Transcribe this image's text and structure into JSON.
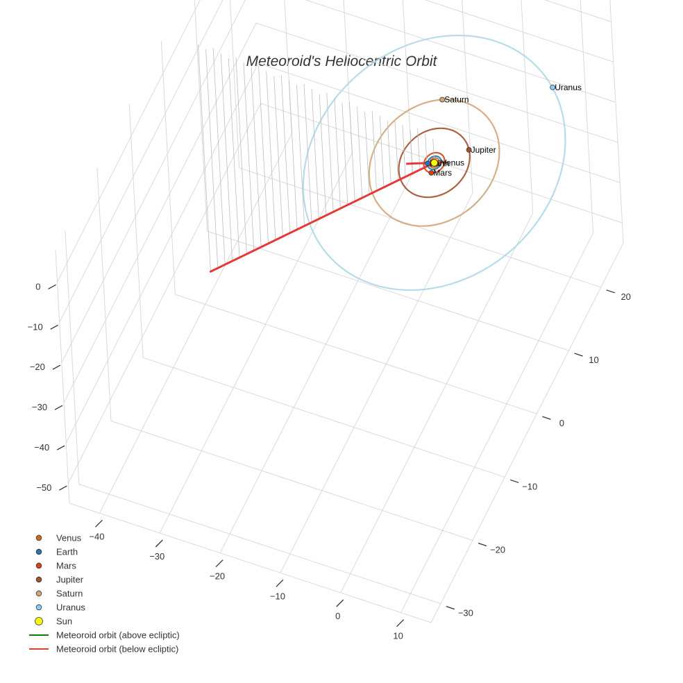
{
  "chart_data": {
    "type": "scatter3d",
    "title": "Meteoroid's Heliocentric Orbit",
    "axes": {
      "x": {
        "ticks": [
          -40,
          -30,
          -20,
          -10,
          0,
          10
        ],
        "grid": true
      },
      "y": {
        "ticks": [
          -30,
          -20,
          -10,
          0,
          10,
          20
        ],
        "grid": true
      },
      "z": {
        "ticks": [
          0,
          -10,
          -20,
          -30,
          -40,
          -50
        ],
        "grid": true
      }
    },
    "sun": {
      "name": "Sun",
      "x": 0,
      "y": 0,
      "z": 0,
      "color": "#ffff00"
    },
    "planets": [
      {
        "name": "Venus",
        "orbit_radius_au": 0.72,
        "x": 0.7,
        "y": 0.2,
        "z": 0,
        "color": "#d2691e"
      },
      {
        "name": "Earth",
        "orbit_radius_au": 1.0,
        "x": -0.9,
        "y": -0.4,
        "z": 0,
        "color": "#1f77b4"
      },
      {
        "name": "Mars",
        "orbit_radius_au": 1.52,
        "x": 0.3,
        "y": -1.5,
        "z": 0,
        "color": "#d84315"
      },
      {
        "name": "Jupiter",
        "orbit_radius_au": 5.2,
        "x": 4.0,
        "y": 3.3,
        "z": 0,
        "color": "#a0522d"
      },
      {
        "name": "Saturn",
        "orbit_radius_au": 9.54,
        "x": -3.4,
        "y": 8.9,
        "z": 0,
        "color": "#d2a679"
      },
      {
        "name": "Uranus",
        "orbit_radius_au": 19.2,
        "x": 11.4,
        "y": 15.5,
        "z": 0,
        "color": "#87cefa"
      }
    ],
    "orbits": [
      {
        "planet": "Venus",
        "radius": 0.72,
        "color": "#d2691e"
      },
      {
        "planet": "Earth",
        "radius": 1.0,
        "color": "#1f77b4"
      },
      {
        "planet": "Mars",
        "radius": 1.52,
        "color": "#d84315"
      },
      {
        "planet": "Jupiter",
        "radius": 5.2,
        "color": "#a0522d"
      },
      {
        "planet": "Saturn",
        "radius": 9.54,
        "color": "#d2a679"
      },
      {
        "planet": "Uranus",
        "radius": 19.2,
        "color": "#add8e6"
      }
    ],
    "meteoroid": {
      "above_ecliptic": {
        "name": "Meteoroid orbit (above ecliptic)",
        "color": "#008000",
        "points": []
      },
      "below_ecliptic": {
        "name": "Meteoroid orbit (below ecliptic)",
        "color": "#e53935",
        "start": {
          "x": 0,
          "y": 0,
          "z": 0
        },
        "end": {
          "x": -40,
          "y": 2,
          "z": -50
        },
        "return_start": {
          "x": -7,
          "y": 4,
          "z": -10
        }
      },
      "projection_line_count": 32
    },
    "legend": [
      {
        "label": "Venus",
        "kind": "marker",
        "color": "#d2691e"
      },
      {
        "label": "Earth",
        "kind": "marker",
        "color": "#1f77b4"
      },
      {
        "label": "Mars",
        "kind": "marker",
        "color": "#d84315"
      },
      {
        "label": "Jupiter",
        "kind": "marker",
        "color": "#a0522d"
      },
      {
        "label": "Saturn",
        "kind": "marker",
        "color": "#d2a679"
      },
      {
        "label": "Uranus",
        "kind": "marker",
        "color": "#87cefa"
      },
      {
        "label": "Sun",
        "kind": "marker-large",
        "color": "#ffff00"
      },
      {
        "label": "Meteoroid orbit (above ecliptic)",
        "kind": "line",
        "color": "#008000"
      },
      {
        "label": "Meteoroid orbit (below ecliptic)",
        "kind": "line",
        "color": "#e53935"
      }
    ],
    "legend_position": "bottom-left"
  }
}
